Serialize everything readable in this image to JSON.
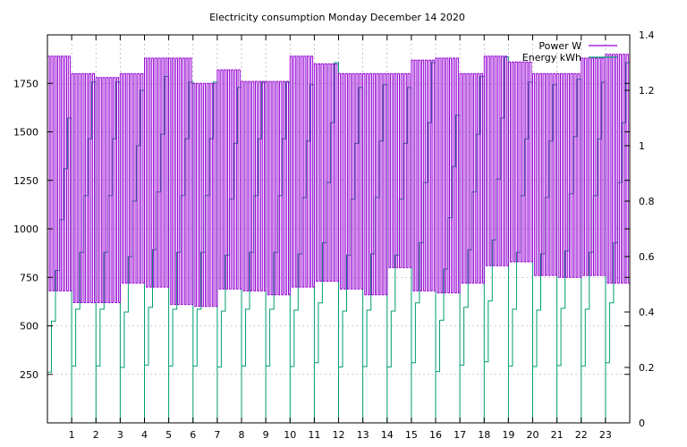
{
  "chart_data": {
    "type": "line",
    "title": "Electricity consumption Monday December 14 2020",
    "xlabel": "",
    "ylabel": "",
    "y2label": "",
    "x_ticks": [
      "1",
      "2",
      "3",
      "4",
      "5",
      "6",
      "7",
      "8",
      "9",
      "10",
      "11",
      "12",
      "13",
      "14",
      "15",
      "16",
      "17",
      "18",
      "19",
      "20",
      "21",
      "22",
      "23"
    ],
    "xlim": [
      0,
      24
    ],
    "y_ticks": [
      250,
      500,
      750,
      1000,
      1250,
      1500,
      1750
    ],
    "ylim": [
      0,
      2000
    ],
    "y2_ticks": [
      "0",
      "0.2",
      "0.4",
      "0.6",
      "0.8",
      "1",
      "1.2",
      "1.4"
    ],
    "y2lim": [
      0,
      1.4
    ],
    "grid": true,
    "legend_position": "top-right",
    "series": [
      {
        "name": "Power W",
        "axis": "left",
        "color": "#9400d3",
        "hourly_on_level": [
          1890,
          1800,
          1780,
          1800,
          1880,
          1880,
          1750,
          1820,
          1760,
          1760,
          1890,
          1850,
          1800,
          1800,
          1800,
          1870,
          1880,
          1800,
          1890,
          1860,
          1800,
          1800,
          1880,
          1900
        ],
        "hourly_off_level": [
          680,
          620,
          620,
          720,
          700,
          610,
          600,
          690,
          680,
          660,
          700,
          730,
          690,
          660,
          800,
          680,
          670,
          720,
          810,
          830,
          760,
          750,
          760,
          720
        ],
        "cycles_per_hour": 7
      },
      {
        "name": "Energy kWh",
        "axis": "right",
        "color": "#009e73",
        "hourly_kwh": [
          1.1,
          1.23,
          1.23,
          1.2,
          1.25,
          1.23,
          1.23,
          1.21,
          1.23,
          1.23,
          1.22,
          1.3,
          1.21,
          1.22,
          1.21,
          1.3,
          1.11,
          1.25,
          1.32,
          1.23,
          1.22,
          1.24,
          1.23,
          1.3
        ]
      }
    ]
  }
}
